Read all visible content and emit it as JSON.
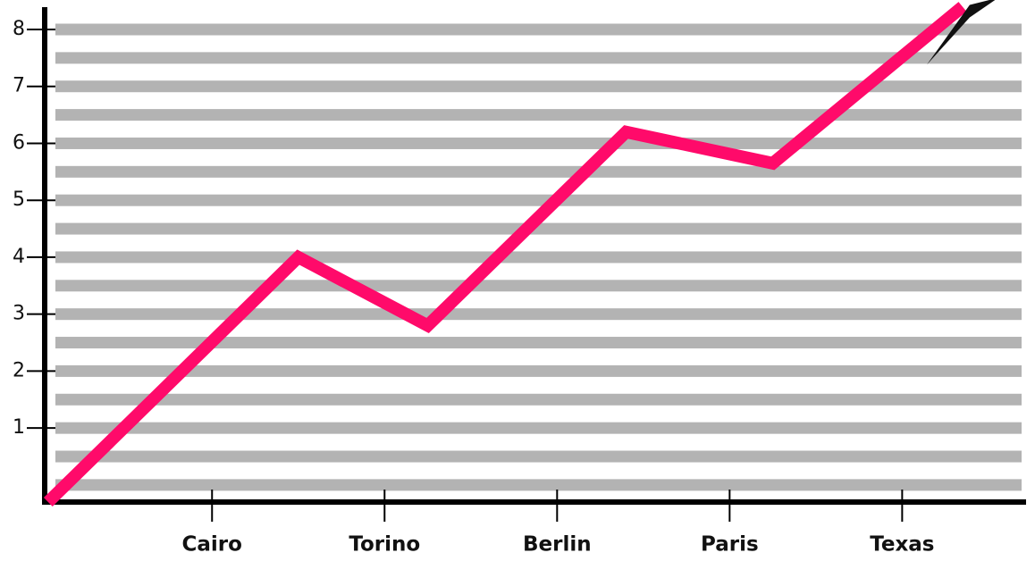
{
  "chart_data": {
    "type": "line",
    "x": [
      0.05,
      1.5,
      2.25,
      3.4,
      4.25,
      5.35
    ],
    "values": [
      -0.3,
      4.0,
      2.8,
      6.2,
      5.65,
      8.4
    ],
    "color": "#ff0a6a",
    "xlim": [
      0.03,
      5.77
    ],
    "xticks": [
      {
        "value": 1,
        "label": "Cairo"
      },
      {
        "value": 2,
        "label": "Torino"
      },
      {
        "value": 3,
        "label": "Berlin"
      },
      {
        "value": 4,
        "label": "Paris"
      },
      {
        "value": 5,
        "label": "Texas"
      }
    ],
    "ylim": [
      -0.3,
      8.4
    ],
    "yticks": [
      1,
      2,
      3,
      4,
      5,
      6,
      7,
      8
    ],
    "grid": true
  }
}
